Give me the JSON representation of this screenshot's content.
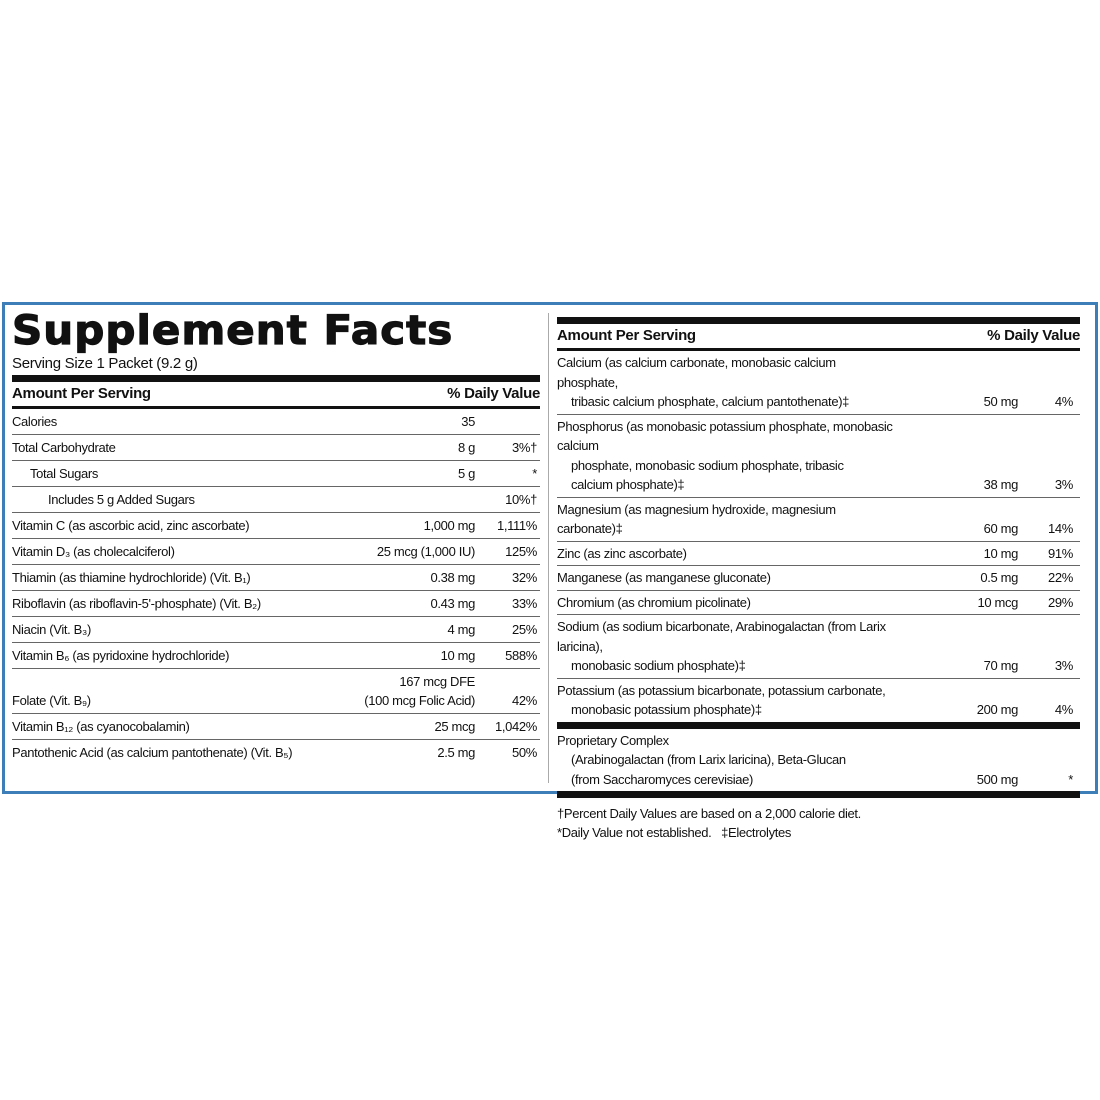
{
  "header": {
    "title": "Supplement Facts",
    "serving": "Serving Size 1 Packet (9.2 g)"
  },
  "left": {
    "col_amount": "Amount Per Serving",
    "col_dv": "% Daily Value",
    "rows": [
      {
        "name": "Calories",
        "amount": "35"
      },
      {
        "name": "Total Carbohydrate",
        "amount": "8 g",
        "dv": "3%†"
      },
      {
        "name": "Total Sugars",
        "amount": "5 g",
        "dv": "*",
        "indent": 1
      },
      {
        "name": "Includes 5 g Added Sugars",
        "dv": "10%†",
        "indent": 2
      },
      {
        "name": "Vitamin C (as ascorbic acid, zinc ascorbate)",
        "amount": "1,000 mg",
        "dv": "1,111%"
      },
      {
        "name": "Vitamin D₃ (as cholecalciferol)",
        "amount": "25 mcg (1,000 IU)",
        "dv": "125%"
      },
      {
        "name": "Thiamin (as thiamine hydrochloride) (Vit. B₁)",
        "amount": "0.38 mg",
        "dv": "32%"
      },
      {
        "name": "Riboflavin (as riboflavin-5'-phosphate) (Vit. B₂)",
        "amount": "0.43 mg",
        "dv": "33%"
      },
      {
        "name": "Niacin (Vit. B₃)",
        "amount": "4 mg",
        "dv": "25%"
      },
      {
        "name": "Vitamin B₆ (as pyridoxine hydrochloride)",
        "amount": "10 mg",
        "dv": "588%"
      },
      {
        "name": "Folate (Vit. B₉)",
        "amount": [
          "167 mcg DFE",
          "(100 mcg Folic Acid)"
        ],
        "dv": "42%"
      },
      {
        "name": "Vitamin B₁₂ (as cyanocobalamin)",
        "amount": "25 mcg",
        "dv": "1,042%"
      },
      {
        "name": "Pantothenic Acid (as calcium pantothenate) (Vit. B₅)",
        "amount": "2.5 mg",
        "dv": "50%"
      }
    ]
  },
  "right": {
    "col_amount": "Amount Per Serving",
    "col_dv": "% Daily Value",
    "rows": [
      {
        "name": [
          "Calcium (as calcium carbonate, monobasic calcium phosphate,",
          "tribasic calcium phosphate, calcium pantothenate)‡"
        ],
        "amount": "50 mg",
        "dv": "4%"
      },
      {
        "name": [
          "Phosphorus (as monobasic potassium phosphate, monobasic calcium",
          "phosphate, monobasic sodium phosphate, tribasic",
          "calcium phosphate)‡"
        ],
        "amount": "38 mg",
        "dv": "3%"
      },
      {
        "name": [
          "Magnesium (as magnesium hydroxide, magnesium carbonate)‡"
        ],
        "amount": "60 mg",
        "dv": "14%"
      },
      {
        "name": [
          "Zinc (as zinc ascorbate)"
        ],
        "amount": "10 mg",
        "dv": "91%"
      },
      {
        "name": [
          "Manganese (as manganese gluconate)"
        ],
        "amount": "0.5 mg",
        "dv": "22%"
      },
      {
        "name": [
          "Chromium (as chromium picolinate)"
        ],
        "amount": "10 mcg",
        "dv": "29%"
      },
      {
        "name": [
          "Sodium (as sodium bicarbonate, Arabinogalactan (from Larix laricina),",
          "monobasic sodium phosphate)‡"
        ],
        "amount": "70 mg",
        "dv": "3%"
      },
      {
        "name": [
          "Potassium (as potassium bicarbonate, potassium carbonate,",
          "monobasic potassium phosphate)‡"
        ],
        "amount": "200 mg",
        "dv": "4%"
      }
    ],
    "proprietary": [
      {
        "name": [
          "Proprietary Complex",
          "(Arabinogalactan (from Larix laricina), Beta-Glucan",
          "(from Saccharomyces cerevisiae)"
        ],
        "amount": "500 mg",
        "dv": "*"
      }
    ],
    "footnotes": [
      "†Percent Daily Values are based on a 2,000 calorie diet.",
      "*Daily Value not established.   ‡Electrolytes"
    ]
  }
}
